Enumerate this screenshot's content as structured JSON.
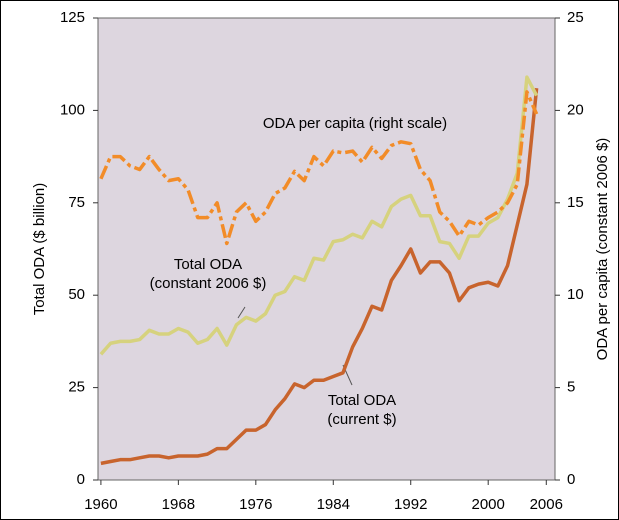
{
  "chart_data": {
    "type": "line",
    "ylabel": "Total ODA ($ billion)",
    "y2label": "ODA per capita (constant 2006 $)",
    "x": [
      1960,
      1961,
      1962,
      1963,
      1964,
      1965,
      1966,
      1967,
      1968,
      1969,
      1970,
      1971,
      1972,
      1973,
      1974,
      1975,
      1976,
      1977,
      1978,
      1979,
      1980,
      1981,
      1982,
      1983,
      1984,
      1985,
      1986,
      1987,
      1988,
      1989,
      1990,
      1991,
      1992,
      1993,
      1994,
      1995,
      1996,
      1997,
      1998,
      1999,
      2000,
      2001,
      2002,
      2003,
      2004,
      2005
    ],
    "xlim": [
      1959.7,
      2006.9
    ],
    "xticks": [
      1960,
      1968,
      1976,
      1984,
      1992,
      2000,
      2006
    ],
    "ylim": [
      0,
      125
    ],
    "yticks": [
      0,
      25,
      50,
      75,
      100,
      125
    ],
    "y2lim": [
      0,
      25
    ],
    "y2ticks": [
      0,
      5,
      10,
      15,
      20,
      25
    ],
    "series": [
      {
        "name": "Total ODA (current $)",
        "color": "#c8642d",
        "dash": "solid",
        "values": [
          4.5,
          5,
          5.5,
          5.5,
          6,
          6.5,
          6.5,
          6,
          6.5,
          6.5,
          6.5,
          7,
          8.5,
          8.5,
          11,
          13.5,
          13.5,
          15,
          19,
          22,
          26,
          25,
          27,
          27,
          28,
          29,
          36,
          41,
          47,
          46,
          54,
          58,
          62.5,
          56,
          59,
          59,
          56,
          48.5,
          52,
          53,
          53.5,
          52.5,
          58,
          69,
          80,
          106
        ]
      },
      {
        "name": "Total ODA (constant 2006 $)",
        "color": "#d6d27e",
        "dash": "solid",
        "values": [
          34,
          37,
          37.5,
          37.5,
          38,
          40.5,
          39.5,
          39.5,
          41,
          40,
          37,
          38,
          41,
          36.5,
          42,
          44,
          43,
          45,
          50,
          51,
          55,
          54,
          60,
          59.5,
          64.5,
          65,
          66.5,
          65.5,
          70,
          68.5,
          74,
          76,
          77,
          71.5,
          71.5,
          64.5,
          64,
          60,
          66,
          66,
          69.5,
          71,
          76,
          83,
          109,
          104
        ]
      },
      {
        "name": "ODA per capita (right scale)",
        "color": "#f28c28",
        "dash": "dashdot",
        "axis": "y2",
        "values": [
          16.3,
          17.5,
          17.5,
          17,
          16.8,
          17.5,
          16.8,
          16.2,
          16.3,
          15.7,
          14.2,
          14.2,
          15,
          12.8,
          14.5,
          15,
          14,
          14.5,
          15.5,
          15.8,
          16.7,
          16.2,
          17.5,
          17,
          17.8,
          17.7,
          17.8,
          17.2,
          18,
          17.4,
          18.1,
          18.3,
          18.2,
          16.8,
          16.2,
          14.5,
          14,
          13.2,
          14,
          13.8,
          14.2,
          14.5,
          15,
          16,
          21,
          19.8
        ]
      }
    ],
    "annotations": [
      {
        "lines": [
          "ODA per capita (right scale)"
        ]
      },
      {
        "lines": [
          "Total ODA",
          "(constant 2006 $)"
        ]
      },
      {
        "lines": [
          "Total ODA",
          "(current $)"
        ]
      }
    ]
  }
}
